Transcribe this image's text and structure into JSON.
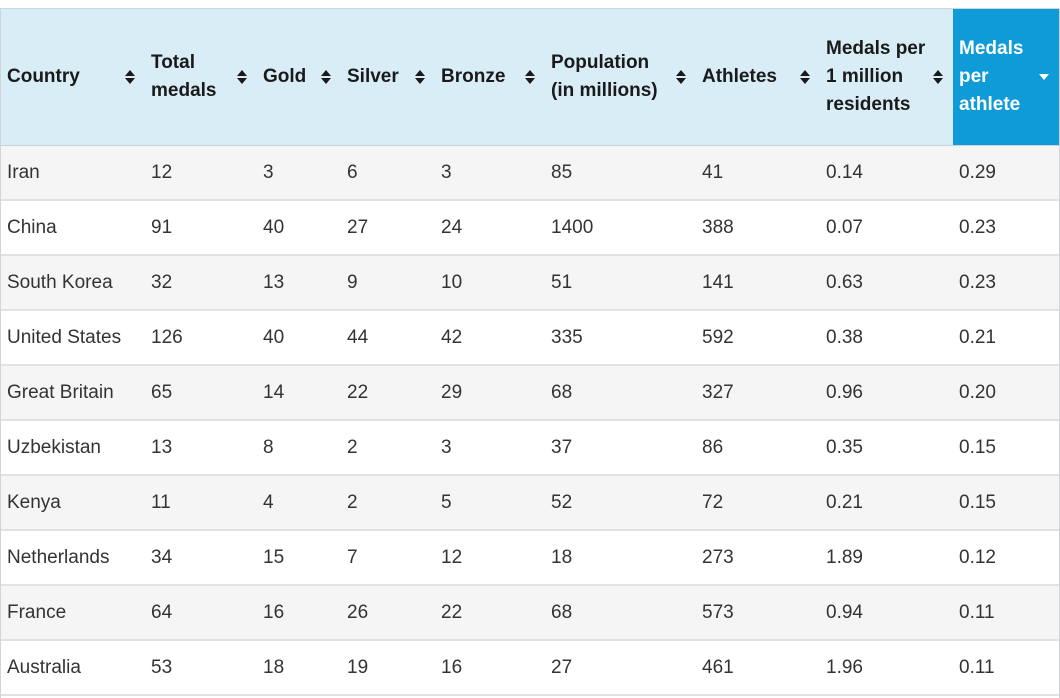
{
  "table": {
    "sorted_column": "medals_per_athlete",
    "sort_direction": "descending",
    "header_color": "#d9edf7",
    "sorted_header_color": "#0f9bd8",
    "columns": [
      {
        "key": "country",
        "label": "Country"
      },
      {
        "key": "total",
        "label": "Total medals"
      },
      {
        "key": "gold",
        "label": "Gold"
      },
      {
        "key": "silver",
        "label": "Silver"
      },
      {
        "key": "bronze",
        "label": "Bronze"
      },
      {
        "key": "population",
        "label": "Population (in millions)"
      },
      {
        "key": "athletes",
        "label": "Athletes"
      },
      {
        "key": "medals_per_million",
        "label": "Medals per 1 million residents"
      },
      {
        "key": "medals_per_athlete",
        "label": "Medals per athlete"
      }
    ],
    "rows": [
      [
        "Iran",
        "12",
        "3",
        "6",
        "3",
        "85",
        "41",
        "0.14",
        "0.29"
      ],
      [
        "China",
        "91",
        "40",
        "27",
        "24",
        "1400",
        "388",
        "0.07",
        "0.23"
      ],
      [
        "South Korea",
        "32",
        "13",
        "9",
        "10",
        "51",
        "141",
        "0.63",
        "0.23"
      ],
      [
        "United States",
        "126",
        "40",
        "44",
        "42",
        "335",
        "592",
        "0.38",
        "0.21"
      ],
      [
        "Great Britain",
        "65",
        "14",
        "22",
        "29",
        "68",
        "327",
        "0.96",
        "0.20"
      ],
      [
        "Uzbekistan",
        "13",
        "8",
        "2",
        "3",
        "37",
        "86",
        "0.35",
        "0.15"
      ],
      [
        "Kenya",
        "11",
        "4",
        "2",
        "5",
        "52",
        "72",
        "0.21",
        "0.15"
      ],
      [
        "Netherlands",
        "34",
        "15",
        "7",
        "12",
        "18",
        "273",
        "1.89",
        "0.12"
      ],
      [
        "France",
        "64",
        "16",
        "26",
        "22",
        "68",
        "573",
        "0.94",
        "0.11"
      ],
      [
        "Australia",
        "53",
        "18",
        "19",
        "16",
        "27",
        "461",
        "1.96",
        "0.11"
      ]
    ]
  }
}
